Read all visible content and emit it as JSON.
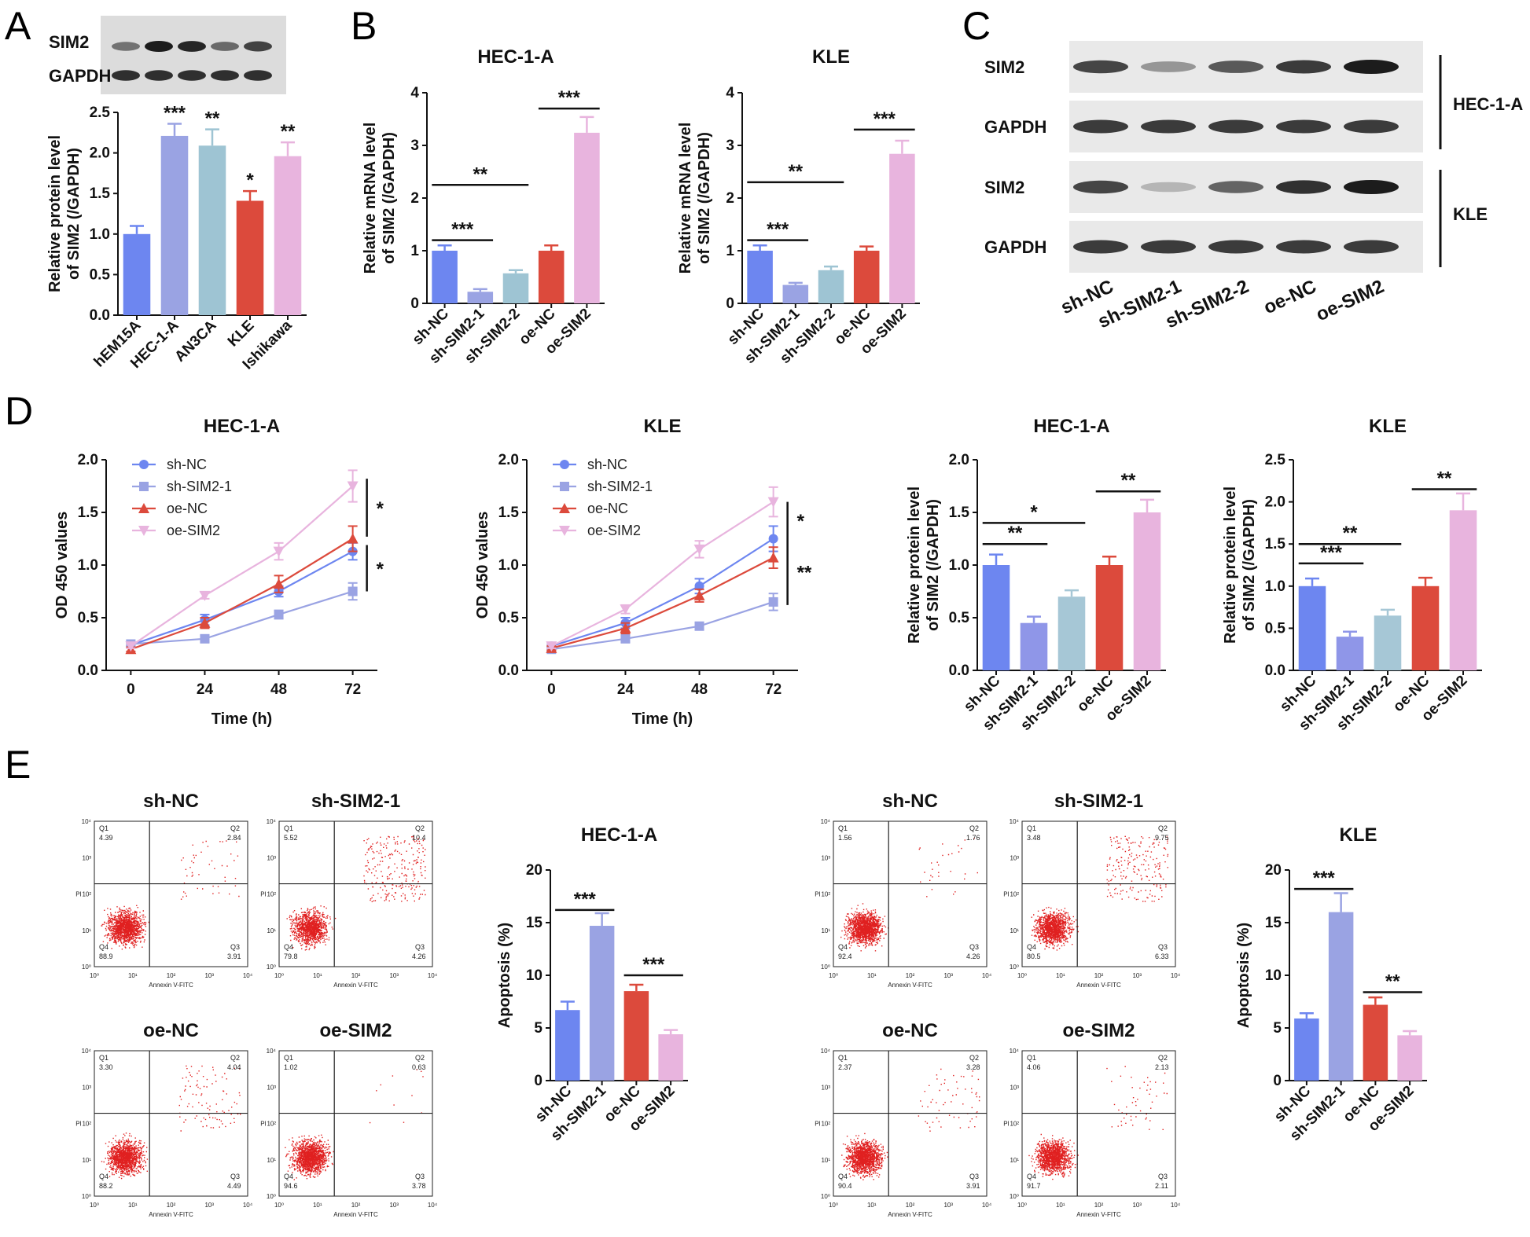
{
  "colors": {
    "blue": "#6d86f0",
    "lavender": "#9aa3e3",
    "teal": "#9ec4d3",
    "red": "#dc4a3c",
    "pink": "#e8b4de",
    "lightpurple": "#8f96e8",
    "lightblue": "#a6c7d6"
  },
  "panels": {
    "A": "A",
    "B": "B",
    "C": "C",
    "D": "D",
    "E": "E"
  },
  "blotA": {
    "labels": [
      "SIM2",
      "GAPDH"
    ],
    "intensity": {
      "SIM2": [
        0.55,
        1.0,
        0.95,
        0.6,
        0.8
      ],
      "GAPDH": [
        0.9,
        0.9,
        0.9,
        0.9,
        0.9
      ]
    }
  },
  "blotC": {
    "lane_labels": [
      "sh-NC",
      "sh-SIM2-1",
      "sh-SIM2-2",
      "oe-NC",
      "oe-SIM2"
    ],
    "row_labels": [
      "SIM2",
      "GAPDH",
      "SIM2",
      "GAPDH"
    ],
    "group_labels": [
      "HEC-1-A",
      "KLE"
    ],
    "intensity": [
      [
        0.8,
        0.4,
        0.7,
        0.85,
        1.0
      ],
      [
        0.85,
        0.85,
        0.85,
        0.85,
        0.85
      ],
      [
        0.8,
        0.25,
        0.65,
        0.9,
        1.0
      ],
      [
        0.85,
        0.85,
        0.85,
        0.85,
        0.85
      ]
    ]
  },
  "chart_data": [
    {
      "id": "A-bar",
      "type": "bar",
      "title": "",
      "ylabel": "Relative protein level of SIM2 (/GAPDH)",
      "ylim": [
        0,
        2.5
      ],
      "yticks": [
        0.0,
        0.5,
        1.0,
        1.5,
        2.0,
        2.5
      ],
      "ytick_labels": [
        "0.0",
        "0.5",
        "1.0",
        "1.5",
        "2.0",
        "2.5"
      ],
      "categories": [
        "hEM15A",
        "HEC-1-A",
        "AN3CA",
        "KLE",
        "Ishikawa"
      ],
      "values": [
        1.0,
        2.21,
        2.09,
        1.41,
        1.96
      ],
      "errors": [
        0.1,
        0.15,
        0.2,
        0.12,
        0.17
      ],
      "colors": [
        "#6d86f0",
        "#9aa3e3",
        "#9ec4d3",
        "#dc4a3c",
        "#e8b4de"
      ],
      "sig_labels": [
        "",
        "***",
        "**",
        "*",
        "**"
      ]
    },
    {
      "id": "B-HEC",
      "type": "bar",
      "title": "HEC-1-A",
      "ylabel": "Relative mRNA level of SIM2 (/GAPDH)",
      "ylim": [
        0,
        4
      ],
      "yticks": [
        0,
        1,
        2,
        3,
        4
      ],
      "ytick_labels": [
        "0",
        "1",
        "2",
        "3",
        "4"
      ],
      "categories": [
        "sh-NC",
        "sh-SIM2-1",
        "sh-SIM2-2",
        "oe-NC",
        "oe-SIM2"
      ],
      "values": [
        1.0,
        0.22,
        0.57,
        1.0,
        3.24
      ],
      "errors": [
        0.1,
        0.05,
        0.06,
        0.1,
        0.3
      ],
      "colors": [
        "#6d86f0",
        "#9aa3e3",
        "#9ec4d3",
        "#dc4a3c",
        "#e8b4de"
      ],
      "brackets": [
        {
          "from": 0,
          "to": 1,
          "y": 1.2,
          "label": "***"
        },
        {
          "from": 0,
          "to": 2,
          "y": 2.25,
          "label": "**"
        },
        {
          "from": 3,
          "to": 4,
          "y": 3.7,
          "label": "***"
        }
      ]
    },
    {
      "id": "B-KLE",
      "type": "bar",
      "title": "KLE",
      "ylabel": "Relative mRNA level of SIM2 (/GAPDH)",
      "ylim": [
        0,
        4
      ],
      "yticks": [
        0,
        1,
        2,
        3,
        4
      ],
      "ytick_labels": [
        "0",
        "1",
        "2",
        "3",
        "4"
      ],
      "categories": [
        "sh-NC",
        "sh-SIM2-1",
        "sh-SIM2-2",
        "oe-NC",
        "oe-SIM2"
      ],
      "values": [
        1.0,
        0.35,
        0.63,
        1.0,
        2.84
      ],
      "errors": [
        0.1,
        0.04,
        0.07,
        0.08,
        0.25
      ],
      "colors": [
        "#6d86f0",
        "#9aa3e3",
        "#9ec4d3",
        "#dc4a3c",
        "#e8b4de"
      ],
      "brackets": [
        {
          "from": 0,
          "to": 1,
          "y": 1.2,
          "label": "***"
        },
        {
          "from": 0,
          "to": 2,
          "y": 2.3,
          "label": "**"
        },
        {
          "from": 3,
          "to": 4,
          "y": 3.3,
          "label": "***"
        }
      ]
    },
    {
      "id": "D-line-HEC",
      "type": "line",
      "title": "HEC-1-A",
      "xlabel": "Time (h)",
      "ylabel": "OD 450 values",
      "ylim": [
        0,
        2.0
      ],
      "yticks": [
        0.0,
        0.5,
        1.0,
        1.5,
        2.0
      ],
      "ytick_labels": [
        "0.0",
        "0.5",
        "1.0",
        "1.5",
        "2.0"
      ],
      "x": [
        0,
        24,
        48,
        72
      ],
      "xtick_labels": [
        "0",
        "24",
        "48",
        "72"
      ],
      "xlim": [
        -8,
        80
      ],
      "series": [
        {
          "name": "sh-NC",
          "values": [
            0.24,
            0.48,
            0.75,
            1.13
          ],
          "errors": [
            0.02,
            0.05,
            0.05,
            0.08
          ],
          "color": "#6d86f0",
          "marker": "circle"
        },
        {
          "name": "sh-SIM2-1",
          "values": [
            0.25,
            0.3,
            0.53,
            0.75
          ],
          "errors": [
            0.02,
            0.03,
            0.04,
            0.08
          ],
          "color": "#9aa3e3",
          "marker": "square"
        },
        {
          "name": "oe-NC",
          "values": [
            0.2,
            0.45,
            0.82,
            1.25
          ],
          "errors": [
            0.02,
            0.05,
            0.08,
            0.12
          ],
          "color": "#dc4a3c",
          "marker": "triangle-up"
        },
        {
          "name": "oe-SIM2",
          "values": [
            0.23,
            0.71,
            1.13,
            1.75
          ],
          "errors": [
            0.02,
            0.03,
            0.08,
            0.15
          ],
          "color": "#e8b4de",
          "marker": "triangle-down"
        }
      ],
      "sig": [
        {
          "y1": 1.82,
          "y2": 1.27,
          "label": "*"
        },
        {
          "y1": 1.19,
          "y2": 0.75,
          "label": "*"
        }
      ]
    },
    {
      "id": "D-line-KLE",
      "type": "line",
      "title": "KLE",
      "xlabel": "Time (h)",
      "ylabel": "OD 450 values",
      "ylim": [
        0,
        2.0
      ],
      "yticks": [
        0.0,
        0.5,
        1.0,
        1.5,
        2.0
      ],
      "ytick_labels": [
        "0.0",
        "0.5",
        "1.0",
        "1.5",
        "2.0"
      ],
      "x": [
        0,
        24,
        48,
        72
      ],
      "xtick_labels": [
        "0",
        "24",
        "48",
        "72"
      ],
      "xlim": [
        -8,
        80
      ],
      "series": [
        {
          "name": "sh-NC",
          "values": [
            0.23,
            0.45,
            0.8,
            1.25
          ],
          "errors": [
            0.02,
            0.05,
            0.07,
            0.12
          ],
          "color": "#6d86f0",
          "marker": "circle"
        },
        {
          "name": "sh-SIM2-1",
          "values": [
            0.2,
            0.3,
            0.42,
            0.65
          ],
          "errors": [
            0.02,
            0.03,
            0.03,
            0.08
          ],
          "color": "#9aa3e3",
          "marker": "square"
        },
        {
          "name": "oe-NC",
          "values": [
            0.21,
            0.4,
            0.71,
            1.07
          ],
          "errors": [
            0.02,
            0.05,
            0.06,
            0.1
          ],
          "color": "#dc4a3c",
          "marker": "triangle-up"
        },
        {
          "name": "oe-SIM2",
          "values": [
            0.23,
            0.58,
            1.15,
            1.6
          ],
          "errors": [
            0.02,
            0.04,
            0.08,
            0.14
          ],
          "color": "#e8b4de",
          "marker": "triangle-down"
        }
      ],
      "sig": [
        {
          "y1": 1.6,
          "y2": 1.25,
          "label": "*"
        },
        {
          "y1": 1.25,
          "y2": 0.62,
          "label": "**"
        }
      ]
    },
    {
      "id": "D-bar-HEC",
      "type": "bar",
      "title": "HEC-1-A",
      "ylabel": "Relative protein level of SIM2 (/GAPDH)",
      "ylim": [
        0,
        2.0
      ],
      "yticks": [
        0.0,
        0.5,
        1.0,
        1.5,
        2.0
      ],
      "ytick_labels": [
        "0.0",
        "0.5",
        "1.0",
        "1.5",
        "2.0"
      ],
      "categories": [
        "sh-NC",
        "sh-SIM2-1",
        "sh-SIM2-2",
        "oe-NC",
        "oe-SIM2"
      ],
      "values": [
        1.0,
        0.45,
        0.7,
        1.0,
        1.5
      ],
      "errors": [
        0.1,
        0.06,
        0.06,
        0.08,
        0.12
      ],
      "colors": [
        "#6d86f0",
        "#8f96e8",
        "#a6c7d6",
        "#dc4a3c",
        "#e8b4de"
      ],
      "brackets": [
        {
          "from": 0,
          "to": 1,
          "y": 1.2,
          "label": "**"
        },
        {
          "from": 0,
          "to": 2,
          "y": 1.4,
          "label": "*"
        },
        {
          "from": 3,
          "to": 4,
          "y": 1.7,
          "label": "**"
        }
      ]
    },
    {
      "id": "D-bar-KLE",
      "type": "bar",
      "title": "KLE",
      "ylabel": "Relative protein level of SIM2 (/GAPDH)",
      "ylim": [
        0,
        2.5
      ],
      "yticks": [
        0.0,
        0.5,
        1.0,
        1.5,
        2.0,
        2.5
      ],
      "ytick_labels": [
        "0.0",
        "0.5",
        "1.0",
        "1.5",
        "2.0",
        "2.5"
      ],
      "categories": [
        "sh-NC",
        "sh-SIM2-1",
        "sh-SIM2-2",
        "oe-NC",
        "oe-SIM2"
      ],
      "values": [
        1.0,
        0.4,
        0.65,
        1.0,
        1.9
      ],
      "errors": [
        0.09,
        0.06,
        0.07,
        0.1,
        0.2
      ],
      "colors": [
        "#6d86f0",
        "#8f96e8",
        "#a6c7d6",
        "#dc4a3c",
        "#e8b4de"
      ],
      "brackets": [
        {
          "from": 0,
          "to": 1,
          "y": 1.27,
          "label": "***"
        },
        {
          "from": 0,
          "to": 2,
          "y": 1.5,
          "label": "**"
        },
        {
          "from": 3,
          "to": 4,
          "y": 2.15,
          "label": "**"
        }
      ]
    },
    {
      "id": "E-bar-HEC",
      "type": "bar",
      "title": "HEC-1-A",
      "ylabel": "Apoptosis (%)",
      "ylim": [
        0,
        20
      ],
      "yticks": [
        0,
        5,
        10,
        15,
        20
      ],
      "ytick_labels": [
        "0",
        "5",
        "10",
        "15",
        "20"
      ],
      "categories": [
        "sh-NC",
        "sh-SIM2-1",
        "oe-NC",
        "oe-SIM2"
      ],
      "values": [
        6.7,
        14.7,
        8.5,
        4.4
      ],
      "errors": [
        0.8,
        1.2,
        0.6,
        0.4
      ],
      "colors": [
        "#6d86f0",
        "#9aa3e3",
        "#dc4a3c",
        "#e8b4de"
      ],
      "brackets": [
        {
          "from": 0,
          "to": 1,
          "y": 16.2,
          "label": "***"
        },
        {
          "from": 2,
          "to": 3,
          "y": 10.0,
          "label": "***"
        }
      ]
    },
    {
      "id": "E-bar-KLE",
      "type": "bar",
      "title": "KLE",
      "ylabel": "Apoptosis (%)",
      "ylim": [
        0,
        20
      ],
      "yticks": [
        0,
        5,
        10,
        15,
        20
      ],
      "ytick_labels": [
        "0",
        "5",
        "10",
        "15",
        "20"
      ],
      "categories": [
        "sh-NC",
        "sh-SIM2-1",
        "oe-NC",
        "oe-SIM2"
      ],
      "values": [
        5.9,
        16.0,
        7.2,
        4.3
      ],
      "errors": [
        0.5,
        1.8,
        0.7,
        0.4
      ],
      "colors": [
        "#6d86f0",
        "#9aa3e3",
        "#dc4a3c",
        "#e8b4de"
      ],
      "brackets": [
        {
          "from": 0,
          "to": 1,
          "y": 18.2,
          "label": "***"
        },
        {
          "from": 2,
          "to": 3,
          "y": 8.4,
          "label": "**"
        }
      ]
    }
  ],
  "flow": {
    "xlabel": "Annexin V-FITC",
    "ylabel": "PI",
    "ticks": [
      "10⁰",
      "10¹",
      "10²",
      "10³",
      "10⁴"
    ],
    "plots": [
      {
        "title": "sh-NC",
        "q1": "4.39",
        "q2": "2.84",
        "q3": "3.91",
        "q4": "88.9"
      },
      {
        "title": "sh-SIM2-1",
        "q1": "5.52",
        "q2": "10.4",
        "q3": "4.26",
        "q4": "79.8"
      },
      {
        "title": "oe-NC",
        "q1": "3.30",
        "q2": "4.04",
        "q3": "4.49",
        "q4": "88.2"
      },
      {
        "title": "oe-SIM2",
        "q1": "1.02",
        "q2": "0.63",
        "q3": "3.78",
        "q4": "94.6"
      },
      {
        "title": "sh-NC",
        "q1": "1.56",
        "q2": "1.76",
        "q3": "4.26",
        "q4": "92.4"
      },
      {
        "title": "sh-SIM2-1",
        "q1": "3.48",
        "q2": "9.75",
        "q3": "6.33",
        "q4": "80.5"
      },
      {
        "title": "oe-NC",
        "q1": "2.37",
        "q2": "3.28",
        "q3": "3.91",
        "q4": "90.4"
      },
      {
        "title": "oe-SIM2",
        "q1": "4.06",
        "q2": "2.13",
        "q3": "2.11",
        "q4": "91.7"
      }
    ]
  }
}
